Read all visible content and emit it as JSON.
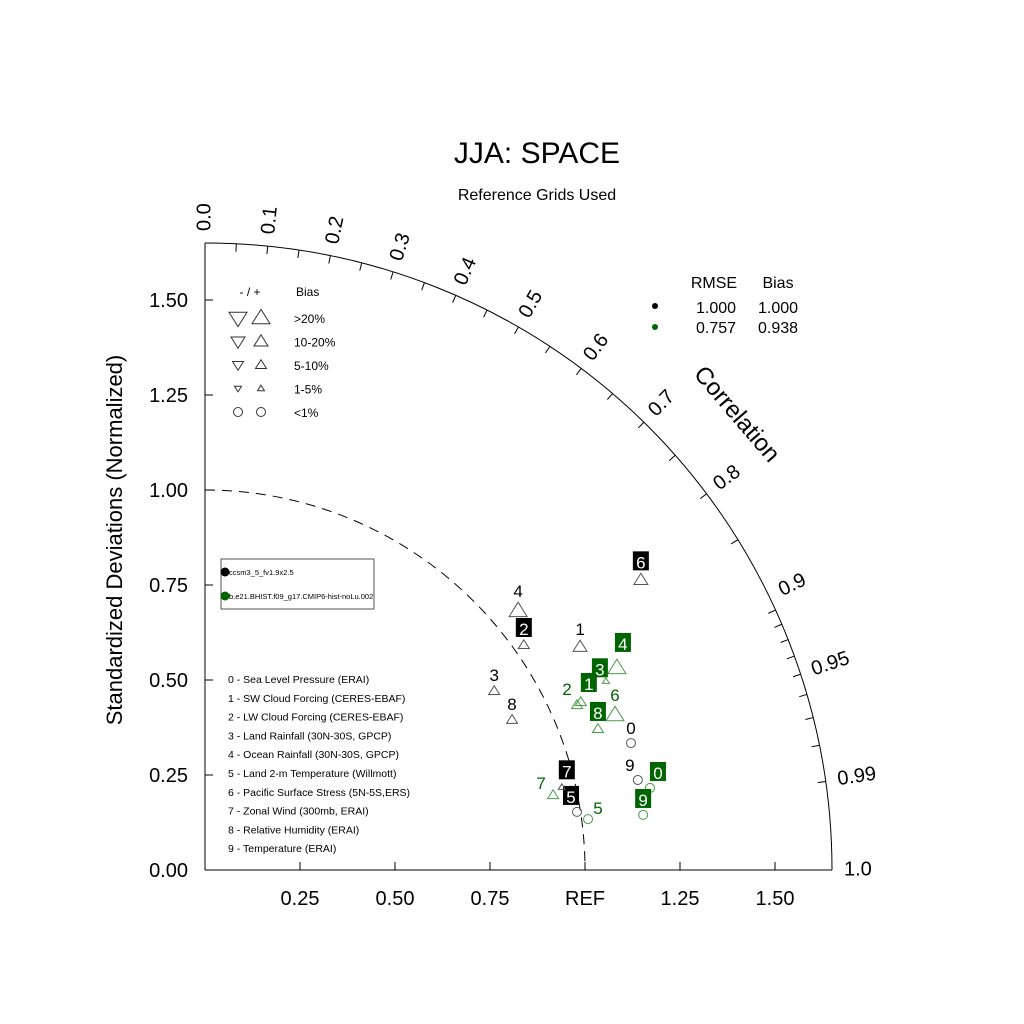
{
  "chart_data": {
    "type": "taylor",
    "title": "JJA: SPACE",
    "subtitle": "Reference Grids Used",
    "ylabel": "Standardized Deviations (Normalized)",
    "correlation_label": "Correlation",
    "ref_label": "REF",
    "x_ticks": [
      "0.25",
      "0.50",
      "0.75",
      "REF",
      "1.25",
      "1.50"
    ],
    "x_tick_values": [
      0.25,
      0.5,
      0.75,
      1.0,
      1.25,
      1.5
    ],
    "y_ticks": [
      "0.00",
      "0.25",
      "0.50",
      "0.75",
      "1.00",
      "1.25",
      "1.50"
    ],
    "y_tick_values": [
      0,
      0.25,
      0.5,
      0.75,
      1.0,
      1.25,
      1.5
    ],
    "std_max": 1.65,
    "correlation_ticks": [
      "0.0",
      "0.1",
      "0.2",
      "0.3",
      "0.4",
      "0.5",
      "0.6",
      "0.7",
      "0.8",
      "0.9",
      "0.95",
      "0.99",
      "1.0"
    ],
    "correlation_tick_values": [
      0,
      0.1,
      0.2,
      0.3,
      0.4,
      0.5,
      0.6,
      0.7,
      0.8,
      0.9,
      0.95,
      0.99,
      1.0
    ],
    "bias_legend": {
      "header_sign": "- / +",
      "header": "Bias",
      "rows": [
        ">20%",
        "10-20%",
        "5-10%",
        "1-5%",
        "<1%"
      ]
    },
    "stats_table": {
      "headers": [
        "RMSE",
        "Bias"
      ],
      "rows": [
        {
          "rmse": "1.000",
          "bias": "1.000",
          "color": "#000000"
        },
        {
          "rmse": "0.757",
          "bias": "0.938",
          "color": "#006400"
        }
      ]
    },
    "cases": [
      {
        "name": "ccsm3_5_fv1.9x2.5",
        "color": "#000000"
      },
      {
        "name": "b.e21.BHIST.f09_g17.CMIP6-hist-noLu.002",
        "color": "#006400"
      }
    ],
    "variables": [
      "0 - Sea Level Pressure (ERAI)",
      "1 - SW Cloud Forcing (CERES-EBAF)",
      "2 - LW Cloud Forcing (CERES-EBAF)",
      "3 - Land Rainfall (30N-30S, GPCP)",
      "4 - Ocean Rainfall (30N-30S, GPCP)",
      "5 - Land 2-m Temperature (Willmott)",
      "6 - Pacific Surface Stress (5N-5S,ERS)",
      "7 - Zonal Wind (300mb, ERAI)",
      "8 - Relative Humidity (ERAI)",
      "9 - Temperature (ERAI)"
    ],
    "series": [
      {
        "name": "ccsm3_5_fv1.9x2.5",
        "color": "#000000",
        "points": [
          {
            "id": "0",
            "x": 1.121,
            "y": 0.334,
            "bias": "<1%",
            "sign": "+",
            "boxed": false
          },
          {
            "id": "1",
            "x": 0.987,
            "y": 0.587,
            "bias": "10-20%",
            "sign": "+",
            "boxed": false
          },
          {
            "id": "2",
            "x": 0.839,
            "y": 0.592,
            "bias": "5-10%",
            "sign": "+",
            "boxed": true
          },
          {
            "id": "3",
            "x": 0.761,
            "y": 0.471,
            "bias": "5-10%",
            "sign": "+",
            "boxed": false
          },
          {
            "id": "4",
            "x": 0.824,
            "y": 0.682,
            "bias": ">20%",
            "sign": "+",
            "boxed": false
          },
          {
            "id": "5",
            "x": 0.979,
            "y": 0.153,
            "bias": "<1%",
            "sign": "+",
            "boxed": true
          },
          {
            "id": "6",
            "x": 1.147,
            "y": 0.763,
            "bias": "10-20%",
            "sign": "+",
            "boxed": true
          },
          {
            "id": "7",
            "x": 0.939,
            "y": 0.218,
            "bias": "1-5%",
            "sign": "+",
            "boxed": true
          },
          {
            "id": "8",
            "x": 0.808,
            "y": 0.395,
            "bias": "5-10%",
            "sign": "+",
            "boxed": false
          },
          {
            "id": "9",
            "x": 1.139,
            "y": 0.237,
            "bias": "<1%",
            "sign": "+",
            "boxed": false
          }
        ]
      },
      {
        "name": "b.e21.BHIST.f09_g17.CMIP6-hist-noLu.002",
        "color": "#006400",
        "points": [
          {
            "id": "0",
            "x": 1.171,
            "y": 0.216,
            "bias": "<1%",
            "sign": "+",
            "boxed": true
          },
          {
            "id": "1",
            "x": 0.989,
            "y": 0.442,
            "bias": "5-10%",
            "sign": "+",
            "boxed": true
          },
          {
            "id": "2",
            "x": 0.979,
            "y": 0.434,
            "bias": "5-10%",
            "sign": "+",
            "boxed": false
          },
          {
            "id": "3",
            "x": 1.055,
            "y": 0.497,
            "bias": "1-5%",
            "sign": "+",
            "boxed": true
          },
          {
            "id": "4",
            "x": 1.084,
            "y": 0.532,
            "bias": ">20%",
            "sign": "+",
            "boxed": true
          },
          {
            "id": "5",
            "x": 1.008,
            "y": 0.134,
            "bias": "<1%",
            "sign": "+",
            "boxed": false
          },
          {
            "id": "6",
            "x": 1.079,
            "y": 0.408,
            "bias": ">20%",
            "sign": "+",
            "boxed": false
          },
          {
            "id": "7",
            "x": 0.916,
            "y": 0.197,
            "bias": "5-10%",
            "sign": "+",
            "boxed": false
          },
          {
            "id": "8",
            "x": 1.034,
            "y": 0.371,
            "bias": "5-10%",
            "sign": "+",
            "boxed": true
          },
          {
            "id": "9",
            "x": 1.153,
            "y": 0.145,
            "bias": "<1%",
            "sign": "+",
            "boxed": true
          }
        ]
      }
    ]
  }
}
